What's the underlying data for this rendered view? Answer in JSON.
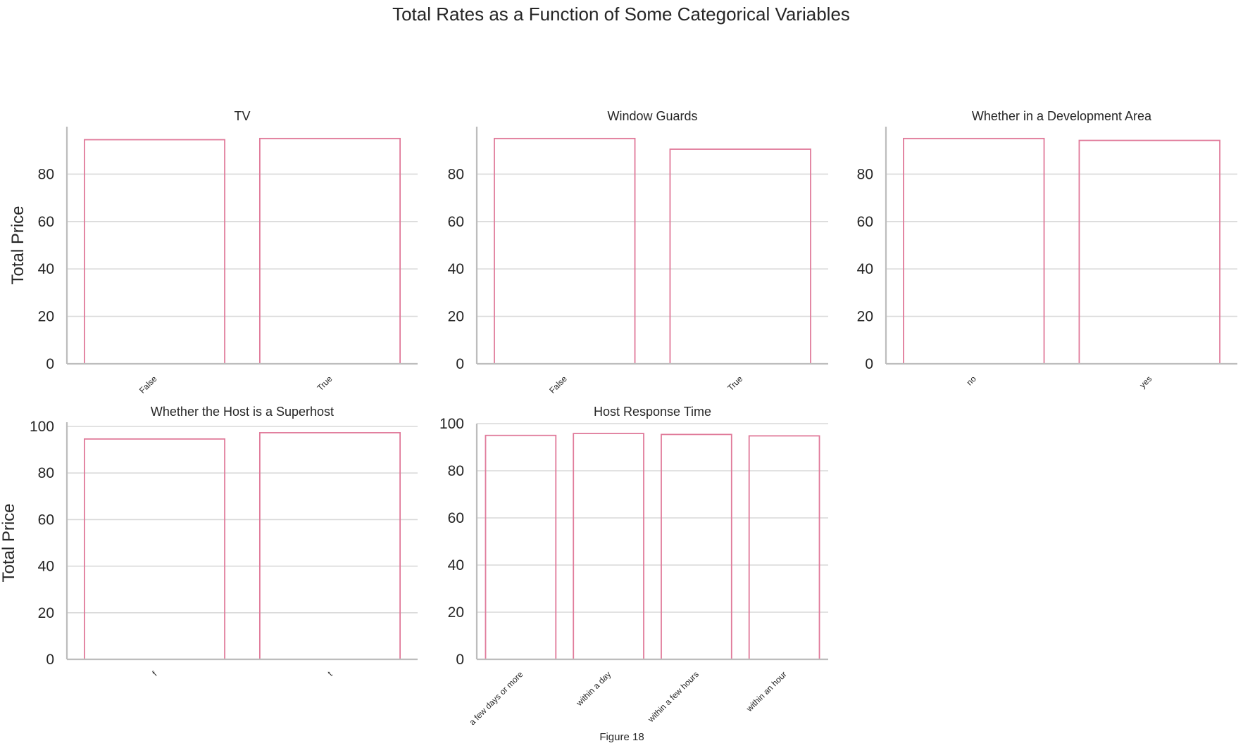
{
  "figure": {
    "suptitle": "Total Rates as a Function of Some Categorical Variables",
    "caption": "Figure 18",
    "bar_edge_color": "#e07a9a",
    "grid_color": "#d9d9d9",
    "axis_color": "#bdbdbd"
  },
  "chart_data": [
    {
      "type": "bar",
      "title": "TV",
      "categories": [
        "False",
        "True"
      ],
      "values": [
        94.5,
        95.0
      ],
      "ylabel": "Total Price",
      "ylim": [
        0,
        100
      ],
      "yticks": [
        0,
        20,
        40,
        60,
        80
      ],
      "grid": true
    },
    {
      "type": "bar",
      "title": "Window Guards",
      "categories": [
        "False",
        "True"
      ],
      "values": [
        95.0,
        90.5
      ],
      "ylabel": "",
      "ylim": [
        0,
        100
      ],
      "yticks": [
        0,
        20,
        40,
        60,
        80
      ],
      "grid": true
    },
    {
      "type": "bar",
      "title": "Whether in a Development Area",
      "categories": [
        "no",
        "yes"
      ],
      "values": [
        95.0,
        94.2
      ],
      "ylabel": "",
      "ylim": [
        0,
        100
      ],
      "yticks": [
        0,
        20,
        40,
        60,
        80
      ],
      "grid": true
    },
    {
      "type": "bar",
      "title": "Whether the Host is a Superhost",
      "categories": [
        "f",
        "t"
      ],
      "values": [
        94.6,
        97.3
      ],
      "ylabel": "Total Price",
      "ylim": [
        0,
        100
      ],
      "yticks": [
        0,
        20,
        40,
        60,
        80,
        100
      ],
      "grid": true
    },
    {
      "type": "bar",
      "title": "Host Response Time",
      "categories": [
        "a few days or more",
        "within a day",
        "within a few hours",
        "within an hour"
      ],
      "values": [
        95.0,
        95.8,
        95.4,
        94.8
      ],
      "ylabel": "",
      "ylim": [
        0,
        100
      ],
      "yticks": [
        0,
        20,
        40,
        60,
        80,
        100
      ],
      "grid": true
    }
  ]
}
